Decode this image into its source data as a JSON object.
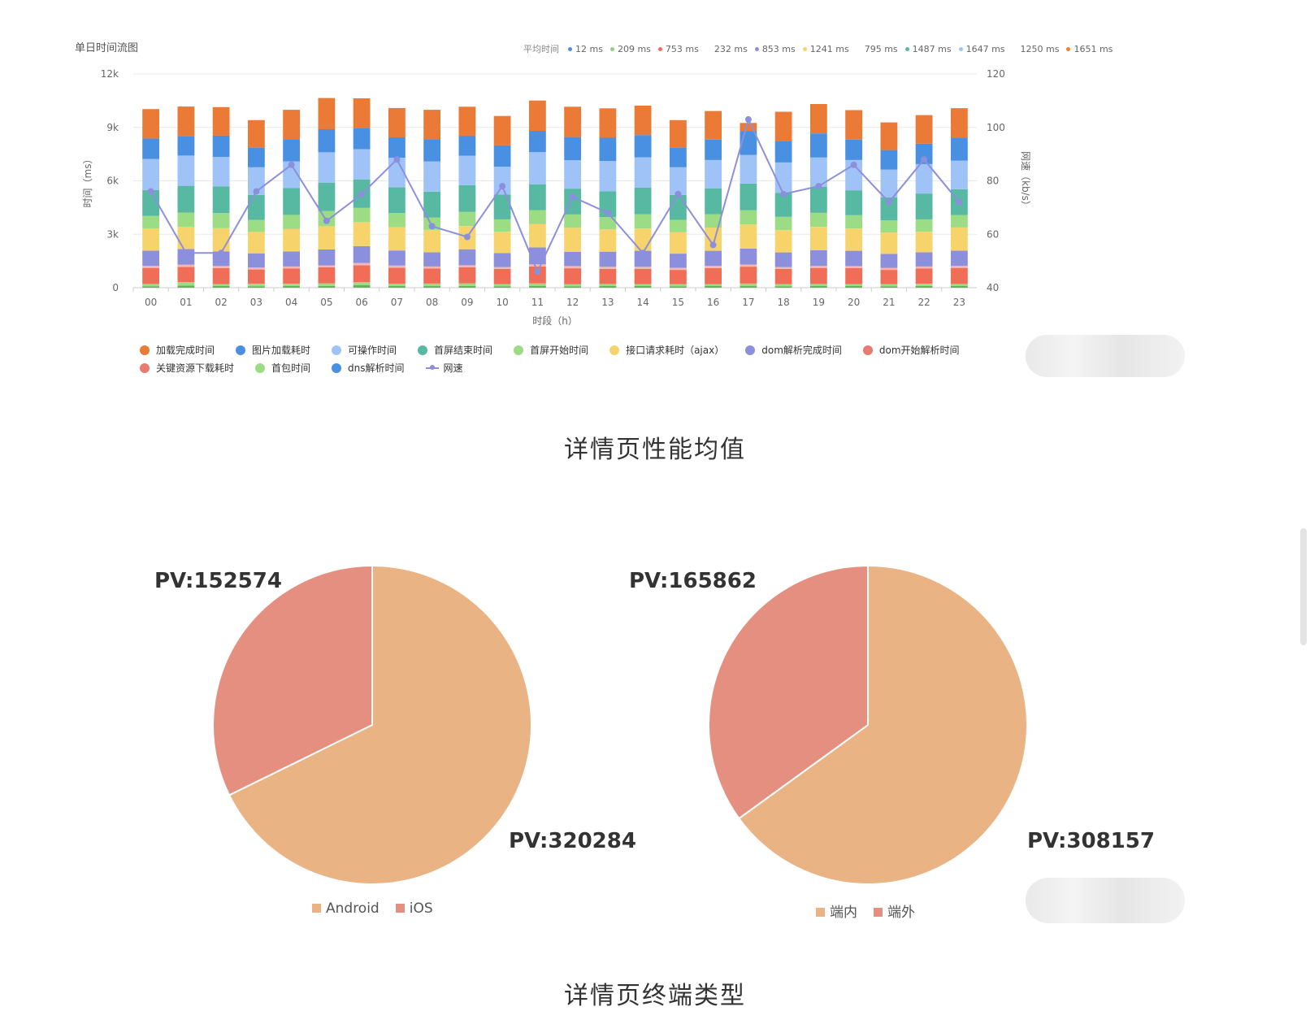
{
  "chart_data": [
    {
      "type": "bar",
      "title": "单日时间流图",
      "xlabel": "时段（h）",
      "ylabel": "时间（ms）",
      "y2label": "网速（kb/s）",
      "stacked": true,
      "ylim": [
        0,
        12000
      ],
      "y2lim": [
        40,
        120
      ],
      "yticks": [
        "0",
        "3k",
        "6k",
        "9k",
        "12k"
      ],
      "y2ticks": [
        "40",
        "60",
        "80",
        "100",
        "120"
      ],
      "categories": [
        "00",
        "01",
        "02",
        "03",
        "04",
        "05",
        "06",
        "07",
        "08",
        "09",
        "10",
        "11",
        "12",
        "13",
        "14",
        "15",
        "16",
        "17",
        "18",
        "19",
        "20",
        "21",
        "22",
        "23"
      ],
      "avg_label": "平均时间",
      "avg_values": [
        {
          "text": "12 ms",
          "color": "#4a90e2"
        },
        {
          "text": "209 ms",
          "color": "#8fd17a"
        },
        {
          "text": "753 ms",
          "color": "#f06d57"
        },
        {
          "text": "232 ms",
          "color": ""
        },
        {
          "text": "853 ms",
          "color": "#8c8fdc"
        },
        {
          "text": "1241 ms",
          "color": "#f7d36b"
        },
        {
          "text": "795 ms",
          "color": ""
        },
        {
          "text": "1487 ms",
          "color": "#58b9a3"
        },
        {
          "text": "1647 ms",
          "color": "#9fc3f7"
        },
        {
          "text": "1250 ms",
          "color": ""
        },
        {
          "text": "1651 ms",
          "color": "#f08030"
        }
      ],
      "series": [
        {
          "name": "dns解析时间",
          "color": "#6aaf5e",
          "values": [
            80,
            120,
            90,
            80,
            90,
            100,
            150,
            90,
            90,
            100,
            80,
            90,
            80,
            90,
            90,
            80,
            90,
            90,
            80,
            90,
            90,
            80,
            100,
            90
          ]
        },
        {
          "name": "首包时间",
          "color": "#9cdc85",
          "values": [
            130,
            200,
            110,
            140,
            130,
            140,
            160,
            130,
            140,
            140,
            120,
            150,
            110,
            120,
            110,
            120,
            110,
            140,
            120,
            120,
            110,
            120,
            120,
            120
          ]
        },
        {
          "name": "关键资源下载耗时",
          "color": "#f06d57",
          "values": [
            900,
            850,
            900,
            800,
            850,
            900,
            950,
            900,
            850,
            900,
            850,
            950,
            900,
            850,
            850,
            800,
            900,
            950,
            850,
            900,
            900,
            800,
            850,
            900
          ]
        },
        {
          "name": "dom开始解析时间",
          "color": "#f4b7b4",
          "values": [
            120,
            120,
            120,
            110,
            120,
            110,
            120,
            120,
            110,
            120,
            110,
            120,
            120,
            110,
            120,
            110,
            120,
            120,
            110,
            120,
            110,
            110,
            120,
            120
          ]
        },
        {
          "name": "dom解析完成时间",
          "color": "#8c8fdc",
          "values": [
            850,
            880,
            820,
            800,
            850,
            900,
            950,
            850,
            800,
            900,
            780,
            950,
            800,
            850,
            900,
            800,
            850,
            900,
            820,
            880,
            860,
            790,
            800,
            850
          ]
        },
        {
          "name": "接口请求耗时（ajax）",
          "color": "#f7d36b",
          "values": [
            1250,
            1250,
            1300,
            1200,
            1250,
            1300,
            1350,
            1300,
            1250,
            1300,
            1200,
            1300,
            1350,
            1250,
            1250,
            1200,
            1300,
            1350,
            1250,
            1300,
            1250,
            1200,
            1150,
            1300
          ]
        },
        {
          "name": "首屏开始时间",
          "color": "#9cdc85",
          "values": [
            700,
            800,
            850,
            680,
            800,
            850,
            800,
            800,
            700,
            800,
            700,
            800,
            750,
            700,
            800,
            700,
            750,
            800,
            750,
            800,
            750,
            680,
            700,
            700
          ]
        },
        {
          "name": "首屏结束时间",
          "color": "#58b9a3",
          "values": [
            1450,
            1500,
            1500,
            1400,
            1500,
            1600,
            1600,
            1450,
            1450,
            1500,
            1400,
            1450,
            1450,
            1450,
            1500,
            1400,
            1450,
            1500,
            1350,
            1450,
            1400,
            1300,
            1450,
            1450
          ]
        },
        {
          "name": "可操作时间",
          "color": "#9fc3f7",
          "values": [
            1750,
            1700,
            1650,
            1550,
            1500,
            1700,
            1700,
            1650,
            1700,
            1650,
            1550,
            1800,
            1600,
            1700,
            1700,
            1550,
            1600,
            1600,
            1700,
            1650,
            1700,
            1550,
            1650,
            1600
          ]
        },
        {
          "name": "图片加载耗时",
          "color": "#4a90e2",
          "values": [
            1150,
            1100,
            1200,
            1100,
            1250,
            1300,
            1200,
            1150,
            1250,
            1100,
            1200,
            1200,
            1300,
            1300,
            1250,
            1100,
            1150,
            1350,
            1200,
            1350,
            1150,
            1100,
            1150,
            1300
          ]
        },
        {
          "name": "加载完成时间",
          "color": "#ea7a35",
          "values": [
            1650,
            1650,
            1600,
            1550,
            1650,
            1750,
            1650,
            1650,
            1650,
            1650,
            1650,
            1700,
            1700,
            1650,
            1650,
            1550,
            1600,
            450,
            1650,
            1650,
            1650,
            1550,
            1600,
            1650
          ]
        }
      ],
      "line_series": {
        "name": "网速",
        "color": "#8c8fdc",
        "axis": "right",
        "values": [
          76,
          53,
          53,
          76,
          86,
          65,
          75,
          88,
          63,
          59,
          78,
          46,
          74,
          68,
          53,
          75,
          56,
          103,
          75,
          78,
          86,
          72,
          88,
          72
        ]
      }
    },
    {
      "type": "pie",
      "categories": [
        "Android",
        "iOS"
      ],
      "values": [
        320284,
        152574
      ],
      "colors": [
        "#e9b384",
        "#e48f80"
      ],
      "labels": [
        "PV:320284",
        "PV:152574"
      ]
    },
    {
      "type": "pie",
      "categories": [
        "端内",
        "端外"
      ],
      "values": [
        308157,
        165862
      ],
      "colors": [
        "#e9b384",
        "#e48f80"
      ],
      "labels": [
        "PV:308157",
        "PV:165862"
      ]
    }
  ],
  "legend_items": [
    {
      "label": "加载完成时间",
      "color": "#ea7a35",
      "kind": "dot"
    },
    {
      "label": "图片加载耗时",
      "color": "#4a90e2",
      "kind": "dot"
    },
    {
      "label": "可操作时间",
      "color": "#9fc3f7",
      "kind": "dot"
    },
    {
      "label": "首屏结束时间",
      "color": "#58b9a3",
      "kind": "dot"
    },
    {
      "label": "首屏开始时间",
      "color": "#9cdc85",
      "kind": "dot"
    },
    {
      "label": "接口请求耗时（ajax）",
      "color": "#f7d36b",
      "kind": "dot"
    },
    {
      "label": "dom解析完成时间",
      "color": "#8c8fdc",
      "kind": "dot"
    },
    {
      "label": "dom开始解析时间",
      "color": "#e87a6f",
      "kind": "dot"
    },
    {
      "label": "关键资源下载耗时",
      "color": "#e87a6f",
      "kind": "dot"
    },
    {
      "label": "首包时间",
      "color": "#9cdc85",
      "kind": "dot"
    },
    {
      "label": "dns解析时间",
      "color": "#4a90e2",
      "kind": "dot"
    },
    {
      "label": "网速",
      "color": "#8c8fdc",
      "kind": "line"
    }
  ],
  "sections": {
    "perf_title": "详情页性能均值",
    "device_title": "详情页终端类型"
  }
}
